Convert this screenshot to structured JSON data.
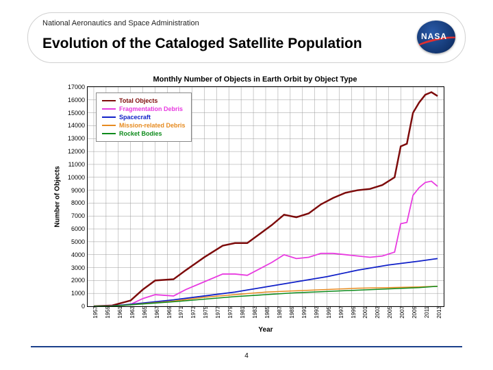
{
  "header": {
    "subhead": "National Aeronautics and Space Administration",
    "title": "Evolution of the Cataloged Satellite Population",
    "logo_text": "NASA"
  },
  "page_number": "4",
  "chart": {
    "type": "line",
    "title": "Monthly Number of Objects in Earth Orbit by Object Type",
    "xlabel": "Year",
    "ylabel": "Number of Objects",
    "title_fontsize": 11,
    "label_fontsize": 10,
    "tick_fontsize": 9,
    "background_color": "#ffffff",
    "grid_color": "#999999",
    "border_color": "#000000",
    "xlim": [
      1956,
      2014
    ],
    "ylim": [
      0,
      17000
    ],
    "ytick_step": 1000,
    "xtick_step": 2,
    "xticks": [
      1957,
      1959,
      1961,
      1963,
      1965,
      1967,
      1969,
      1971,
      1973,
      1975,
      1977,
      1979,
      1981,
      1983,
      1985,
      1987,
      1989,
      1991,
      1993,
      1995,
      1997,
      1999,
      2001,
      2003,
      2005,
      2007,
      2009,
      2011,
      2013
    ],
    "series": [
      {
        "name": "Total Objects",
        "color": "#7d0b0b",
        "width": 2.5,
        "points": [
          [
            1957,
            2
          ],
          [
            1960,
            60
          ],
          [
            1963,
            450
          ],
          [
            1965,
            1300
          ],
          [
            1967,
            2000
          ],
          [
            1970,
            2100
          ],
          [
            1972,
            2800
          ],
          [
            1975,
            3800
          ],
          [
            1978,
            4700
          ],
          [
            1980,
            4900
          ],
          [
            1982,
            4900
          ],
          [
            1984,
            5600
          ],
          [
            1986,
            6300
          ],
          [
            1988,
            7100
          ],
          [
            1990,
            6900
          ],
          [
            1992,
            7200
          ],
          [
            1994,
            7900
          ],
          [
            1996,
            8400
          ],
          [
            1998,
            8800
          ],
          [
            2000,
            9000
          ],
          [
            2002,
            9100
          ],
          [
            2004,
            9400
          ],
          [
            2006,
            10000
          ],
          [
            2007,
            12400
          ],
          [
            2008,
            12600
          ],
          [
            2009,
            15000
          ],
          [
            2010,
            15800
          ],
          [
            2011,
            16400
          ],
          [
            2012,
            16600
          ],
          [
            2013,
            16300
          ]
        ]
      },
      {
        "name": "Fragmentation Debris",
        "color": "#e83ae0",
        "width": 1.8,
        "points": [
          [
            1957,
            0
          ],
          [
            1961,
            30
          ],
          [
            1963,
            150
          ],
          [
            1965,
            600
          ],
          [
            1967,
            900
          ],
          [
            1970,
            800
          ],
          [
            1972,
            1300
          ],
          [
            1975,
            1900
          ],
          [
            1978,
            2500
          ],
          [
            1980,
            2500
          ],
          [
            1982,
            2400
          ],
          [
            1984,
            2900
          ],
          [
            1986,
            3400
          ],
          [
            1988,
            4000
          ],
          [
            1990,
            3700
          ],
          [
            1992,
            3800
          ],
          [
            1994,
            4100
          ],
          [
            1996,
            4100
          ],
          [
            1998,
            4000
          ],
          [
            2000,
            3900
          ],
          [
            2002,
            3800
          ],
          [
            2004,
            3900
          ],
          [
            2006,
            4200
          ],
          [
            2007,
            6400
          ],
          [
            2008,
            6500
          ],
          [
            2009,
            8600
          ],
          [
            2010,
            9200
          ],
          [
            2011,
            9600
          ],
          [
            2012,
            9700
          ],
          [
            2013,
            9300
          ]
        ]
      },
      {
        "name": "Spacecraft",
        "color": "#1020c8",
        "width": 1.8,
        "points": [
          [
            1957,
            2
          ],
          [
            1960,
            20
          ],
          [
            1965,
            250
          ],
          [
            1970,
            500
          ],
          [
            1975,
            800
          ],
          [
            1980,
            1100
          ],
          [
            1985,
            1500
          ],
          [
            1990,
            1900
          ],
          [
            1995,
            2300
          ],
          [
            2000,
            2800
          ],
          [
            2005,
            3200
          ],
          [
            2010,
            3500
          ],
          [
            2013,
            3700
          ]
        ]
      },
      {
        "name": "Mission-related Debris",
        "color": "#e68a1f",
        "width": 1.5,
        "points": [
          [
            1957,
            0
          ],
          [
            1960,
            10
          ],
          [
            1965,
            200
          ],
          [
            1970,
            400
          ],
          [
            1975,
            700
          ],
          [
            1980,
            900
          ],
          [
            1985,
            1100
          ],
          [
            1990,
            1200
          ],
          [
            1995,
            1300
          ],
          [
            2000,
            1400
          ],
          [
            2005,
            1450
          ],
          [
            2010,
            1500
          ],
          [
            2013,
            1550
          ]
        ]
      },
      {
        "name": "Rocket Bodies",
        "color": "#0c8a1a",
        "width": 1.5,
        "points": [
          [
            1957,
            0
          ],
          [
            1960,
            15
          ],
          [
            1965,
            180
          ],
          [
            1970,
            350
          ],
          [
            1975,
            550
          ],
          [
            1980,
            750
          ],
          [
            1985,
            900
          ],
          [
            1990,
            1050
          ],
          [
            1995,
            1150
          ],
          [
            2000,
            1250
          ],
          [
            2005,
            1350
          ],
          [
            2010,
            1450
          ],
          [
            2013,
            1550
          ]
        ]
      }
    ],
    "legend_position": "upper-left"
  }
}
